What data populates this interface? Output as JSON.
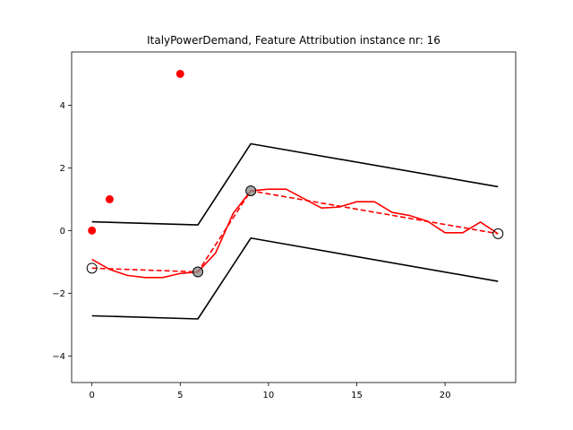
{
  "chart_data": {
    "type": "line",
    "title": "ItalyPowerDemand, Feature Attribution instance nr: 16",
    "xlabel": "",
    "ylabel": "",
    "xlim": [
      -1.15,
      24.0
    ],
    "ylim": [
      -4.85,
      5.7
    ],
    "x_ticks": [
      0,
      5,
      10,
      15,
      20
    ],
    "y_ticks": [
      -4,
      -2,
      0,
      2,
      4
    ],
    "grid": false,
    "colors": {
      "series": "#ff0000",
      "bounds": "#000000",
      "markers": "#ff0000"
    },
    "series": [
      {
        "style": "solid",
        "color": "#ff0000",
        "x": [
          0,
          1,
          2,
          3,
          4,
          5,
          6,
          7,
          8,
          9,
          10,
          11,
          12,
          13,
          14,
          15,
          16,
          17,
          18,
          19,
          20,
          21,
          22,
          23
        ],
        "y": [
          -0.92,
          -1.24,
          -1.43,
          -1.5,
          -1.5,
          -1.37,
          -1.32,
          -0.72,
          0.55,
          1.27,
          1.32,
          1.32,
          1.02,
          0.72,
          0.75,
          0.92,
          0.92,
          0.58,
          0.48,
          0.3,
          -0.07,
          -0.07,
          0.27,
          -0.1
        ]
      },
      {
        "style": "dashed",
        "color": "#ff0000",
        "x": [
          0,
          6,
          9,
          23
        ],
        "y": [
          -1.2,
          -1.32,
          1.27,
          -0.1
        ]
      },
      {
        "style": "solid",
        "color": "#000000",
        "x": [
          0,
          6,
          9,
          23
        ],
        "y": [
          0.28,
          0.18,
          2.77,
          1.4
        ]
      },
      {
        "style": "solid",
        "color": "#000000",
        "x": [
          0,
          6,
          9,
          23
        ],
        "y": [
          -2.72,
          -2.82,
          -0.24,
          -1.62
        ]
      }
    ],
    "circle_markers": [
      {
        "x": 0,
        "y": -1.2,
        "fill": "none"
      },
      {
        "x": 6,
        "y": -1.32,
        "fill": "#888888"
      },
      {
        "x": 9,
        "y": 1.27,
        "fill": "#888888"
      },
      {
        "x": 23,
        "y": -0.1,
        "fill": "none"
      }
    ],
    "attribution_points": [
      {
        "x": 0,
        "y": 0.0
      },
      {
        "x": 1,
        "y": 1.0
      },
      {
        "x": 5,
        "y": 5.0
      }
    ]
  }
}
